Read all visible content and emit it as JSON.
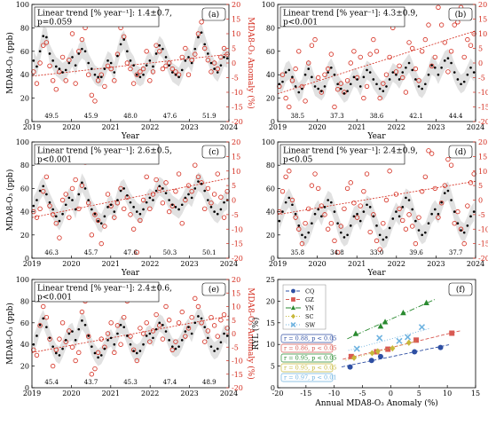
{
  "chart_data": [
    {
      "type": "scatter",
      "panel_label": "(a)",
      "trend": "Linear trend [% year⁻¹]: 1.4±0.7,",
      "pvalue": "p=0.059",
      "ylabel": "MDA8-O₃ (ppb)",
      "y2label": "MDA8-O₃ Anomaly (%)",
      "xlabel": "Year",
      "xlim": [
        2019,
        2024
      ],
      "ylim": [
        0,
        100
      ],
      "y2lim": [
        -20,
        20
      ],
      "xticks": [
        "2019",
        "2020",
        "2021",
        "2022",
        "2023",
        "2024"
      ],
      "yticks": [
        "0",
        "20",
        "40",
        "60",
        "80",
        "100"
      ],
      "y2ticks": [
        "-20",
        "-15",
        "-10",
        "-5",
        "0",
        "5",
        "10",
        "15",
        "20"
      ],
      "annual_means": [
        "49.5",
        "45.9",
        "48.0",
        "47.6",
        "51.9"
      ],
      "trend_line": [
        -4.5,
        3.0
      ],
      "mdaO3": [
        52,
        47,
        60,
        73,
        72,
        58,
        52,
        47,
        45,
        42,
        44,
        50,
        55,
        48,
        58,
        62,
        60,
        50,
        45,
        40,
        38,
        38,
        45,
        52,
        50,
        42,
        56,
        66,
        70,
        60,
        52,
        48,
        40,
        38,
        40,
        48,
        52,
        47,
        58,
        65,
        62,
        55,
        48,
        42,
        40,
        38,
        44,
        52,
        55,
        50,
        62,
        72,
        76,
        66,
        58,
        50,
        45,
        42,
        48,
        55,
        54
      ],
      "anomaly": [
        -3,
        -7,
        0,
        6,
        7,
        -1,
        -6,
        -9,
        -3,
        2,
        -6,
        1,
        10,
        -7,
        4,
        8,
        12,
        -4,
        -11,
        -13,
        -6,
        -4,
        -8,
        -1,
        -2,
        -6,
        3,
        12,
        9,
        0,
        -2,
        -7,
        -4,
        -3,
        -2,
        4,
        -6,
        -3,
        6,
        4,
        -2,
        -1,
        0,
        -2,
        -3,
        -4,
        2,
        5,
        -4,
        1,
        3,
        10,
        14,
        5,
        1,
        -3,
        0,
        -2,
        2,
        5,
        3
      ]
    },
    {
      "type": "scatter",
      "panel_label": "(b)",
      "trend": "Linear trend [% year⁻¹]: 4.3±0.9,",
      "pvalue": "p<0.001",
      "ylabel": "",
      "y2label": "MDA8-O₃ Anomaly (%)",
      "xlabel": "Year",
      "xlim": [
        2019,
        2024
      ],
      "ylim": [
        0,
        100
      ],
      "y2lim": [
        -20,
        20
      ],
      "xticks": [
        "2019",
        "2020",
        "2021",
        "2022",
        "2023",
        "2024"
      ],
      "yticks": [
        "0",
        "20",
        "40",
        "60",
        "80",
        "100"
      ],
      "y2ticks": [
        "-20",
        "-15",
        "-10",
        "-5",
        "0",
        "5",
        "10",
        "15",
        "20"
      ],
      "annual_means": [
        "38.5",
        "37.3",
        "38.6",
        "42.1",
        "44.4"
      ],
      "trend_line": [
        -10.5,
        11.0
      ],
      "mdaO3": [
        32,
        34,
        42,
        44,
        38,
        30,
        25,
        28,
        40,
        45,
        38,
        30,
        28,
        26,
        30,
        42,
        46,
        40,
        32,
        28,
        24,
        26,
        32,
        38,
        36,
        30,
        38,
        44,
        42,
        36,
        32,
        28,
        26,
        30,
        36,
        42,
        40,
        36,
        42,
        46,
        50,
        44,
        36,
        30,
        28,
        32,
        40,
        48,
        46,
        40,
        46,
        52,
        54,
        50,
        42,
        36,
        32,
        34,
        40,
        46,
        42
      ],
      "anomaly": [
        -8,
        -4,
        -12,
        -15,
        -6,
        -2,
        4,
        -8,
        -13,
        0,
        6,
        8,
        -5,
        -10,
        -4,
        -2,
        3,
        -15,
        -9,
        -7,
        -10,
        -6,
        0,
        4,
        -5,
        2,
        -12,
        -8,
        3,
        8,
        4,
        -12,
        -7,
        -4,
        2,
        12,
        -3,
        -1,
        -5,
        -10,
        7,
        5,
        -2,
        -6,
        4,
        8,
        13,
        -1,
        2,
        19,
        13,
        7,
        -3,
        4,
        13,
        14,
        19,
        2,
        8,
        6,
        10
      ]
    },
    {
      "type": "scatter",
      "panel_label": "(c)",
      "trend": "Linear trend [% year⁻¹]: 2.6±0.5,",
      "pvalue": "p<0.001",
      "ylabel": "MDA8-O₃ (ppb)",
      "y2label": "",
      "xlabel": "Year",
      "xlim": [
        2019,
        2024
      ],
      "ylim": [
        0,
        100
      ],
      "y2lim": [
        -20,
        20
      ],
      "xticks": [
        "2019",
        "2020",
        "2021",
        "2022",
        "2023",
        "2024"
      ],
      "yticks": [
        "0",
        "20",
        "40",
        "60",
        "80",
        "100"
      ],
      "y2ticks": [
        "-20",
        "-15",
        "-10",
        "-5",
        "0",
        "5",
        "10",
        "15",
        "20"
      ],
      "annual_means": [
        "46.3",
        "45.7",
        "47.6",
        "50.3",
        "50.1"
      ],
      "trend_line": [
        -6.0,
        7.5
      ],
      "mdaO3": [
        45,
        50,
        58,
        62,
        55,
        48,
        42,
        36,
        32,
        38,
        46,
        52,
        50,
        42,
        55,
        65,
        60,
        50,
        42,
        38,
        32,
        30,
        36,
        44,
        46,
        40,
        50,
        58,
        60,
        54,
        48,
        44,
        40,
        38,
        42,
        48,
        52,
        50,
        58,
        62,
        60,
        56,
        50,
        46,
        44,
        42,
        46,
        52,
        55,
        52,
        60,
        66,
        64,
        58,
        50,
        44,
        40,
        38,
        42,
        48,
        50
      ],
      "anomaly": [
        -4,
        -6,
        -3,
        3,
        8,
        -2,
        -5,
        -8,
        -13,
        0,
        2,
        -6,
        4,
        7,
        -3,
        5,
        13,
        -1,
        -12,
        -5,
        -7,
        -15,
        -9,
        2,
        -2,
        -6,
        -1,
        4,
        -3,
        1,
        -5,
        -10,
        -18,
        -7,
        0,
        8,
        -3,
        2,
        7,
        4,
        -1,
        6,
        -4,
        -2,
        3,
        9,
        -8,
        0,
        5,
        3,
        12,
        8,
        6,
        -3,
        4,
        -1,
        2,
        9,
        1,
        -6,
        3
      ]
    },
    {
      "type": "scatter",
      "panel_label": "(d)",
      "trend": "Linear trend [% year⁻¹]: 2.4±0.9,",
      "pvalue": "p<0.05",
      "ylabel": "",
      "y2label": "MDA8-O₃ Anomaly (%)",
      "xlabel": "Year",
      "xlim": [
        2019,
        2024
      ],
      "ylim": [
        0,
        100
      ],
      "y2lim": [
        -20,
        20
      ],
      "xticks": [
        "2019",
        "2020",
        "2021",
        "2022",
        "2023",
        "2024"
      ],
      "yticks": [
        "0",
        "20",
        "40",
        "60",
        "80",
        "100"
      ],
      "y2ticks": [
        "-20",
        "-15",
        "-10",
        "-5",
        "0",
        "5",
        "10",
        "15",
        "20"
      ],
      "annual_means": [
        "35.8",
        "34.8",
        "33.0",
        "39.6",
        "37.7"
      ],
      "trend_line": [
        -5.0,
        6.5
      ],
      "mdaO3": [
        32,
        40,
        48,
        52,
        46,
        38,
        28,
        20,
        18,
        22,
        30,
        38,
        42,
        36,
        44,
        50,
        48,
        40,
        30,
        22,
        18,
        20,
        28,
        36,
        38,
        32,
        40,
        46,
        44,
        36,
        28,
        20,
        16,
        18,
        26,
        34,
        40,
        36,
        44,
        52,
        50,
        42,
        32,
        24,
        20,
        22,
        30,
        38,
        42,
        38,
        48,
        56,
        58,
        50,
        40,
        30,
        24,
        22,
        28,
        36,
        40
      ],
      "anomaly": [
        -4,
        3,
        8,
        10,
        0,
        -6,
        -10,
        -15,
        -8,
        -3,
        5,
        9,
        4,
        -2,
        -5,
        -10,
        -8,
        -14,
        -18,
        -9,
        -3,
        4,
        6,
        -1,
        -6,
        -2,
        3,
        9,
        -11,
        -5,
        -14,
        -17,
        -8,
        0,
        10,
        14,
        2,
        -3,
        -7,
        -10,
        -5,
        -9,
        -15,
        -6,
        3,
        8,
        17,
        16,
        4,
        -6,
        -1,
        5,
        14,
        12,
        -8,
        -4,
        -10,
        -15,
        -2,
        6,
        9
      ]
    },
    {
      "type": "scatter",
      "panel_label": "(e)",
      "trend": "Linear trend [% year⁻¹]: 2.4±0.6,",
      "pvalue": "p<0.001",
      "ylabel": "MDA8-O₃ (ppb)",
      "y2label": "MDA8-O₃ Anomaly (%)",
      "xlabel": "",
      "xlim": [
        2019,
        2024
      ],
      "ylim": [
        0,
        100
      ],
      "y2lim": [
        -20,
        20
      ],
      "xticks": [
        "2019",
        "2020",
        "2021",
        "2022",
        "2023",
        "2024"
      ],
      "yticks": [
        "0",
        "20",
        "40",
        "60",
        "80",
        "100"
      ],
      "y2ticks": [
        "-20",
        "-15",
        "-10",
        "-5",
        "0",
        "5",
        "10",
        "15",
        "20"
      ],
      "annual_means": [
        "45.4",
        "43.7",
        "45.3",
        "47.4",
        "48.9"
      ],
      "trend_line": [
        -7.0,
        6.5
      ],
      "mdaO3": [
        40,
        48,
        58,
        64,
        56,
        46,
        38,
        32,
        30,
        36,
        44,
        50,
        52,
        44,
        54,
        62,
        58,
        48,
        38,
        32,
        28,
        30,
        36,
        44,
        46,
        40,
        50,
        58,
        56,
        48,
        40,
        34,
        32,
        34,
        40,
        48,
        50,
        46,
        54,
        60,
        58,
        52,
        44,
        38,
        36,
        38,
        44,
        52,
        56,
        50,
        60,
        66,
        64,
        56,
        46,
        38,
        34,
        36,
        42,
        50,
        48
      ],
      "anomaly": [
        -6,
        -8,
        3,
        10,
        6,
        -2,
        -12,
        -6,
        -2,
        4,
        -3,
        1,
        -5,
        -10,
        -7,
        8,
        12,
        -1,
        -15,
        -13,
        -7,
        -2,
        -5,
        0,
        4,
        -7,
        3,
        -4,
        6,
        12,
        -1,
        -6,
        -10,
        2,
        0,
        4,
        -3,
        1,
        7,
        3,
        -2,
        10,
        5,
        -6,
        -3,
        4,
        8,
        -1,
        2,
        6,
        13,
        10,
        4,
        -3,
        1,
        6,
        3,
        -1,
        5,
        7,
        2
      ]
    },
    {
      "type": "scatter",
      "panel_label": "(f)",
      "xlabel": "Annual MDA8-O₃ Anomaly (%)",
      "ylabel": "RYL (%)",
      "xlim": [
        -20,
        15
      ],
      "ylim": [
        0,
        25
      ],
      "xticks": [
        "-20",
        "-15",
        "-10",
        "-5",
        "0",
        "5",
        "10",
        "15"
      ],
      "yticks": [
        "0",
        "5",
        "10",
        "15",
        "20",
        "25"
      ],
      "series": [
        {
          "name": "CQ",
          "color": "#2e4fa3",
          "marker": "circle",
          "dash": "4,2",
          "stat": "r = 0.88, p < 0.05",
          "x": [
            -7.2,
            -3.4,
            -1.8,
            4.2,
            8.8
          ],
          "y": [
            4.8,
            6.3,
            7.2,
            8.3,
            9.3
          ]
        },
        {
          "name": "GZ",
          "color": "#d85a53",
          "marker": "square",
          "dash": "4,2",
          "stat": "r = 0.86, p < 0.05",
          "x": [
            -7.0,
            -2.5,
            -0.5,
            4.5,
            10.8
          ],
          "y": [
            7.2,
            8.3,
            8.9,
            11.0,
            12.6
          ]
        },
        {
          "name": "YN",
          "color": "#2a8a30",
          "marker": "triangle",
          "dash": "6,2,1,2",
          "stat": "r = 0.95, p < 0.05",
          "x": [
            -6.2,
            -1.8,
            -1.0,
            2.2,
            6.3
          ],
          "y": [
            12.5,
            14.2,
            15.2,
            17.3,
            19.6
          ]
        },
        {
          "name": "SC",
          "color": "#c7b83a",
          "marker": "diamond",
          "dash": "1,2",
          "stat": "r = 0.95, p < 0.05",
          "x": [
            -6.5,
            -3.3,
            -2.3,
            0.3,
            3.2
          ],
          "y": [
            6.9,
            8.0,
            8.4,
            9.1,
            10.4
          ]
        },
        {
          "name": "SW",
          "color": "#6fb3e0",
          "marker": "x",
          "dash": "1,2",
          "stat": "r = 0.97, p < 0.01",
          "x": [
            -6.0,
            -2.0,
            1.5,
            3.0,
            5.5
          ],
          "y": [
            9.0,
            11.5,
            10.8,
            11.7,
            14.0
          ]
        }
      ]
    }
  ]
}
